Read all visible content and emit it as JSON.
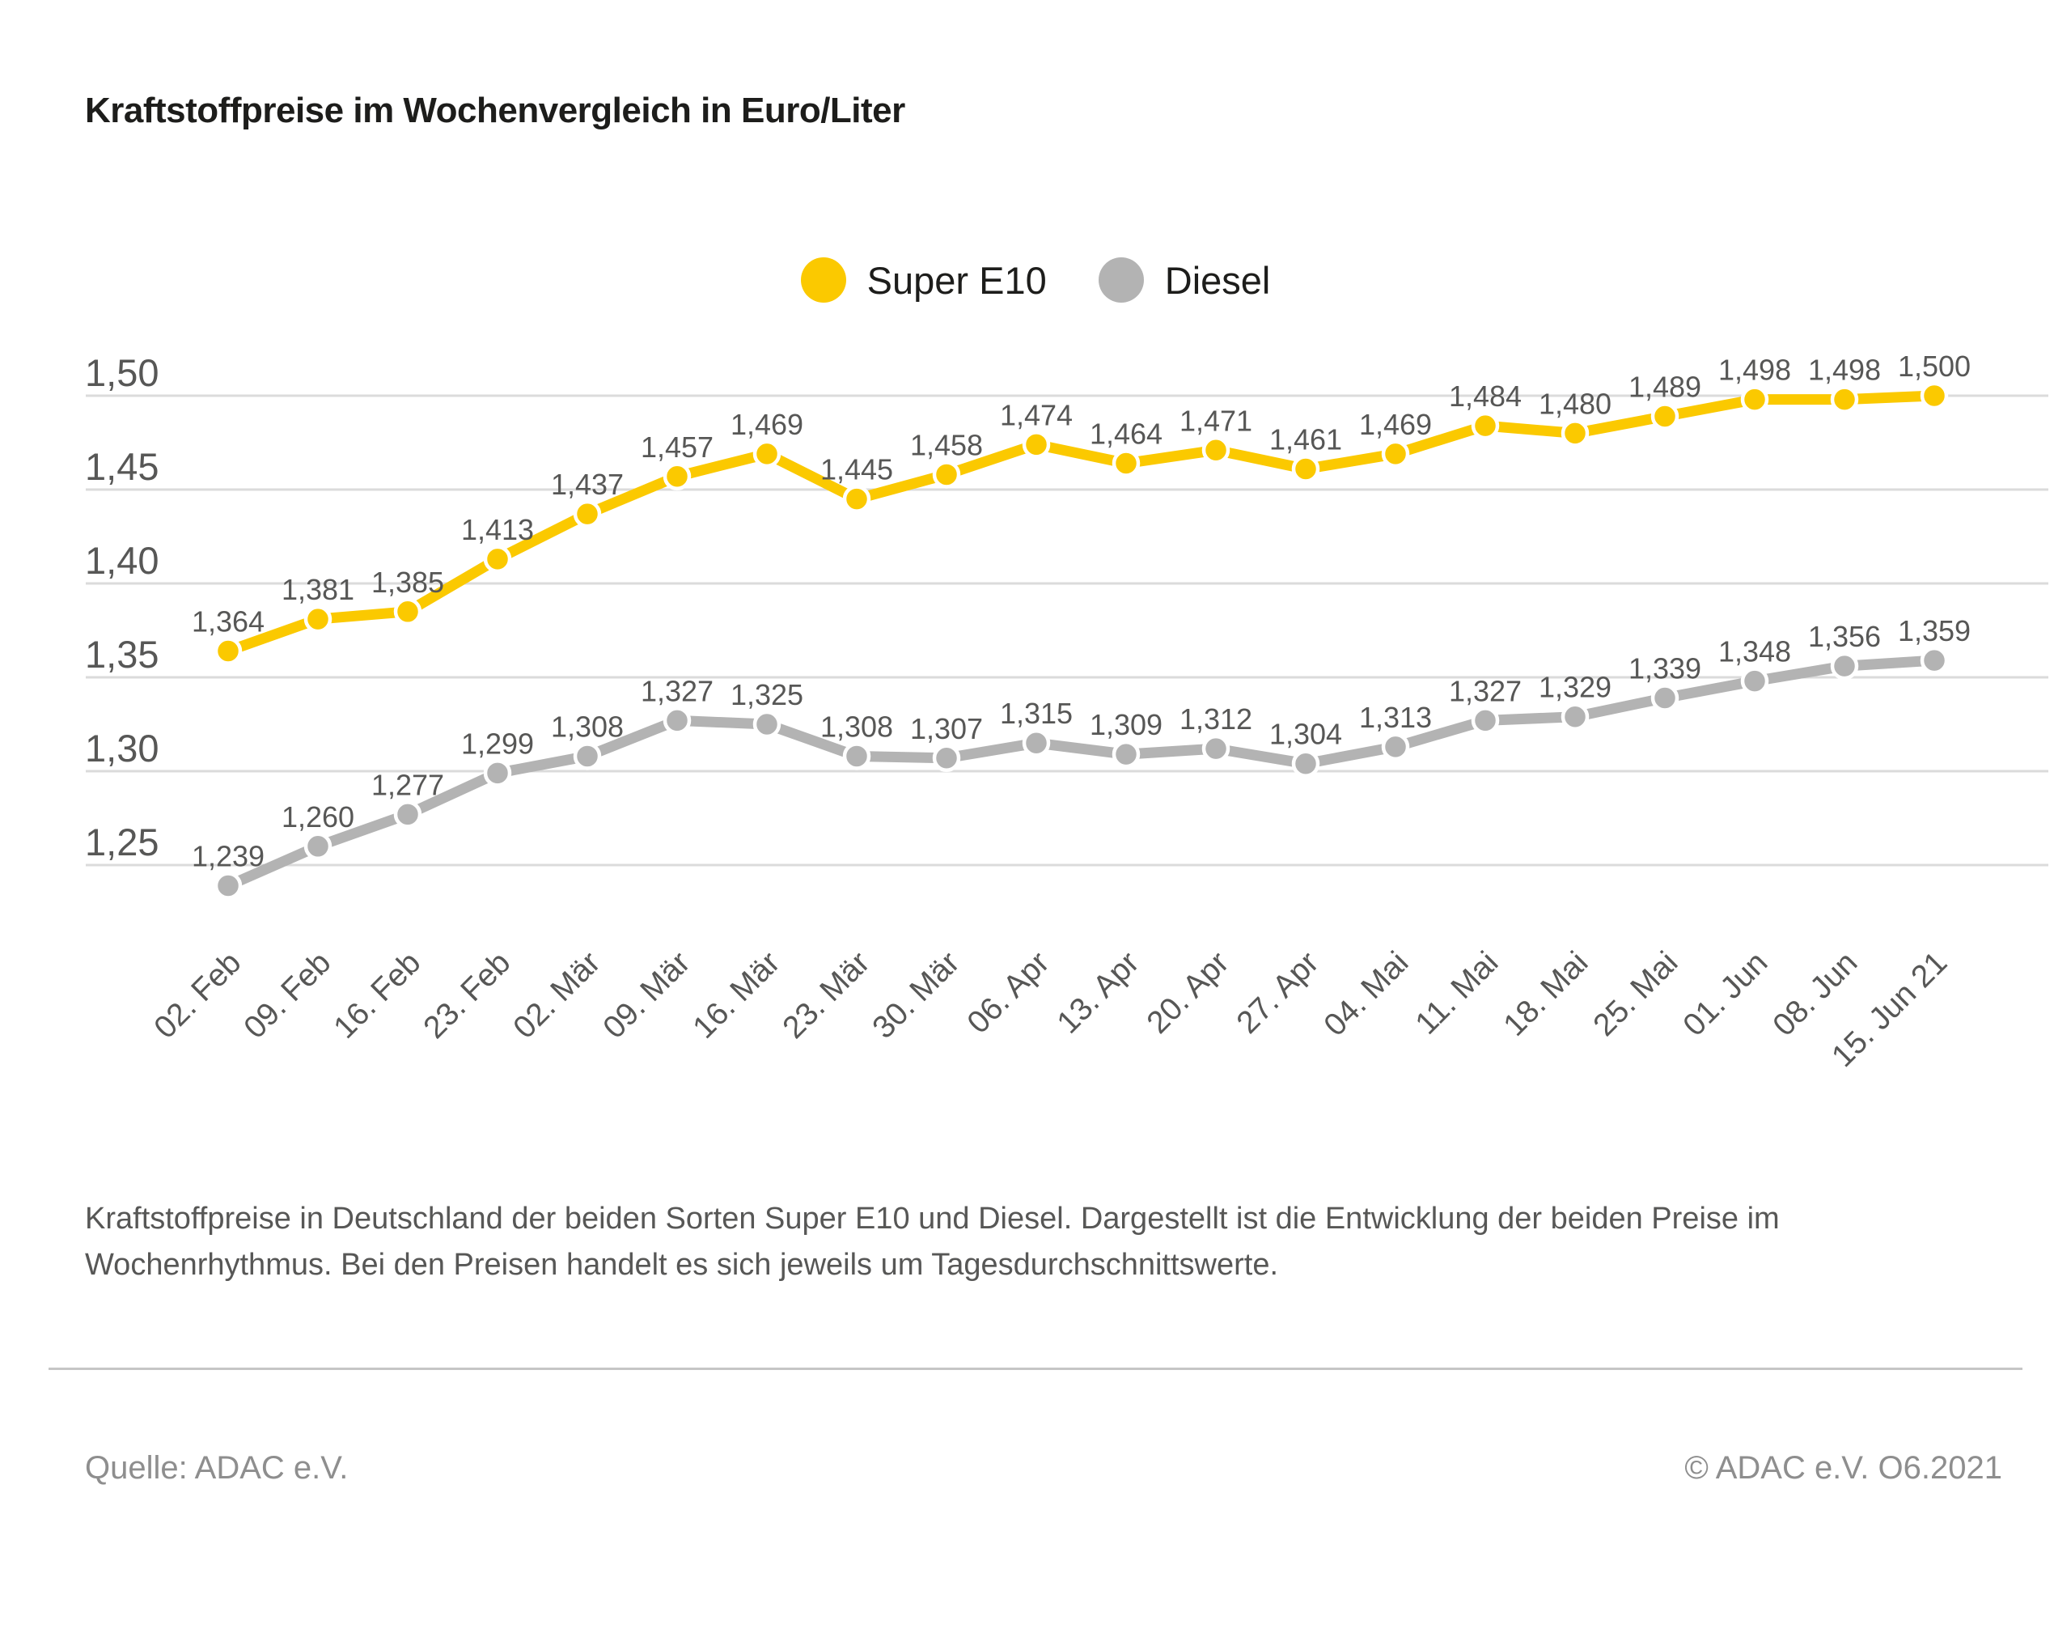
{
  "page": {
    "title": "Kraftstoffpreise im Wochenvergleich in Euro/Liter",
    "caption_line1": "Kraftstoffpreise in Deutschland der beiden Sorten Super E10 und Diesel. Dargestellt ist die Entwicklung der beiden Preise im",
    "caption_line2": "Wochenrhythmus. Bei den Preisen handelt es sich jeweils um Tagesdurchschnittswerte.",
    "source": "Quelle: ADAC e.V.",
    "copyright": "© ADAC e.V. O6.2021"
  },
  "colors": {
    "super_e10": "#FBC900",
    "diesel": "#B3B3B3",
    "gridline": "#DBDBDB",
    "axis_text": "#575756",
    "title_text": "#1d1d1b",
    "footer_text": "#8e8e8e"
  },
  "chart_data": {
    "type": "line",
    "title": "Kraftstoffpreise im Wochenvergleich in Euro/Liter",
    "unit": "Euro/Liter",
    "categories": [
      "02. Feb",
      "09. Feb",
      "16. Feb",
      "23. Feb",
      "02. Mär",
      "09. Mär",
      "16. Mär",
      "23. Mär",
      "30. Mär",
      "06. Apr",
      "13. Apr",
      "20. Apr",
      "27. Apr",
      "04. Mai",
      "11. Mai",
      "18. Mai",
      "25. Mai",
      "01. Jun",
      "08. Jun",
      "15. Jun 21"
    ],
    "series": [
      {
        "name": "Super E10",
        "color": "#FBC900",
        "values": [
          1.364,
          1.381,
          1.385,
          1.413,
          1.437,
          1.457,
          1.469,
          1.445,
          1.458,
          1.474,
          1.464,
          1.471,
          1.461,
          1.469,
          1.484,
          1.48,
          1.489,
          1.498,
          1.498,
          1.5
        ]
      },
      {
        "name": "Diesel",
        "color": "#B3B3B3",
        "values": [
          1.239,
          1.26,
          1.277,
          1.299,
          1.308,
          1.327,
          1.325,
          1.308,
          1.307,
          1.315,
          1.309,
          1.312,
          1.304,
          1.313,
          1.327,
          1.329,
          1.339,
          1.348,
          1.356,
          1.359
        ]
      }
    ],
    "yticks": [
      1.5,
      1.45,
      1.4,
      1.35,
      1.3,
      1.25
    ],
    "ylim": [
      1.225,
      1.515
    ],
    "grid": true,
    "legend_position": "top-center",
    "decimal_separator": ",",
    "point_labels": true
  }
}
